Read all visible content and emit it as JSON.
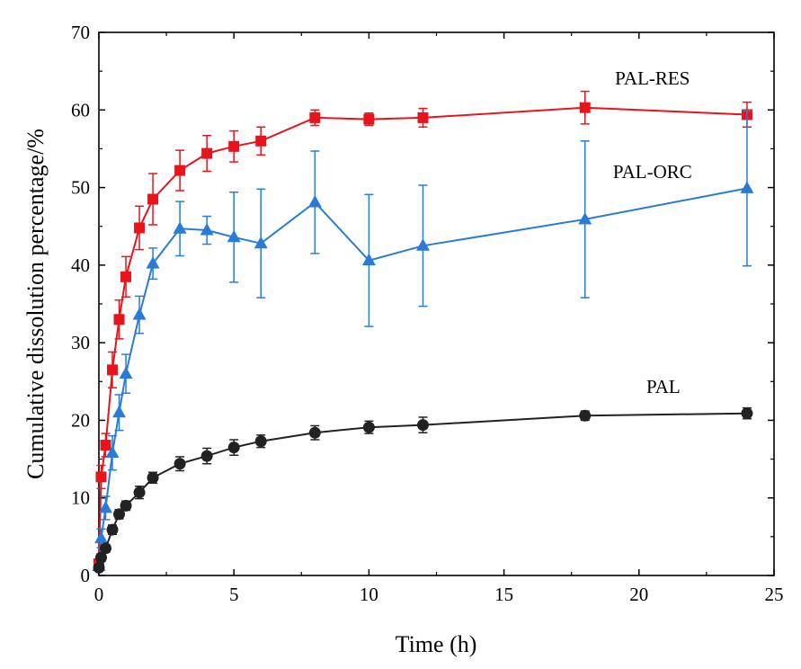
{
  "chart_data": {
    "type": "line",
    "title": "",
    "xlabel": "Time (h)",
    "ylabel": "Cumulative dissolution percentage/%",
    "xlim": [
      0,
      25
    ],
    "ylim": [
      0,
      70
    ],
    "xticks": [
      0,
      5,
      10,
      15,
      20,
      25
    ],
    "yticks": [
      0,
      10,
      20,
      30,
      40,
      50,
      60,
      70
    ],
    "grid": false,
    "series": [
      {
        "name": "PAL-RES",
        "color": "#e8141c",
        "marker": "square",
        "x": [
          0,
          0.083,
          0.25,
          0.5,
          0.75,
          1,
          1.5,
          2,
          3,
          4,
          5,
          6,
          8,
          10,
          12,
          18,
          24
        ],
        "y": [
          1.5,
          12.7,
          16.8,
          26.5,
          33.0,
          38.5,
          44.8,
          48.5,
          52.2,
          54.4,
          55.3,
          56.0,
          59.0,
          58.8,
          59.0,
          60.3,
          59.4
        ],
        "err": [
          0.5,
          1.5,
          1.5,
          2.3,
          2.5,
          2.6,
          2.8,
          3.3,
          2.6,
          2.3,
          2.0,
          1.8,
          1.0,
          0.8,
          1.2,
          2.1,
          1.6
        ]
      },
      {
        "name": "PAL-ORC",
        "color": "#2a7bd6",
        "marker": "triangle",
        "x": [
          0,
          0.083,
          0.25,
          0.5,
          0.75,
          1,
          1.5,
          2,
          3,
          4,
          5,
          6,
          8,
          10,
          12,
          18,
          24
        ],
        "y": [
          1.2,
          4.8,
          8.7,
          15.8,
          21.0,
          26.0,
          33.6,
          40.2,
          44.7,
          44.5,
          43.6,
          42.8,
          48.1,
          40.6,
          42.5,
          45.9,
          49.9
        ],
        "err": [
          0.4,
          1.2,
          1.5,
          2.2,
          2.3,
          2.5,
          2.4,
          2.0,
          3.5,
          1.8,
          5.8,
          7.0,
          6.6,
          8.5,
          7.8,
          10.1,
          10.0
        ]
      },
      {
        "name": "PAL",
        "color": "#222222",
        "marker": "circle",
        "x": [
          0,
          0.083,
          0.25,
          0.5,
          0.75,
          1,
          1.5,
          2,
          3,
          4,
          5,
          6,
          8,
          10,
          12,
          18,
          24
        ],
        "y": [
          1.0,
          2.3,
          3.5,
          5.9,
          7.9,
          9.0,
          10.7,
          12.6,
          14.4,
          15.4,
          16.5,
          17.3,
          18.4,
          19.1,
          19.4,
          20.6,
          20.9
        ],
        "err": [
          0.3,
          0.5,
          0.5,
          0.6,
          0.6,
          0.6,
          0.8,
          0.7,
          0.9,
          1.0,
          1.0,
          0.8,
          0.9,
          0.8,
          1.0,
          0.6,
          0.7
        ]
      }
    ],
    "annotations": [
      {
        "text": "PAL-RES",
        "x": 20.5,
        "y": 63.3
      },
      {
        "text": "PAL-ORC",
        "x": 20.5,
        "y": 51.2
      },
      {
        "text": "PAL",
        "x": 20.9,
        "y": 23.5
      }
    ]
  }
}
